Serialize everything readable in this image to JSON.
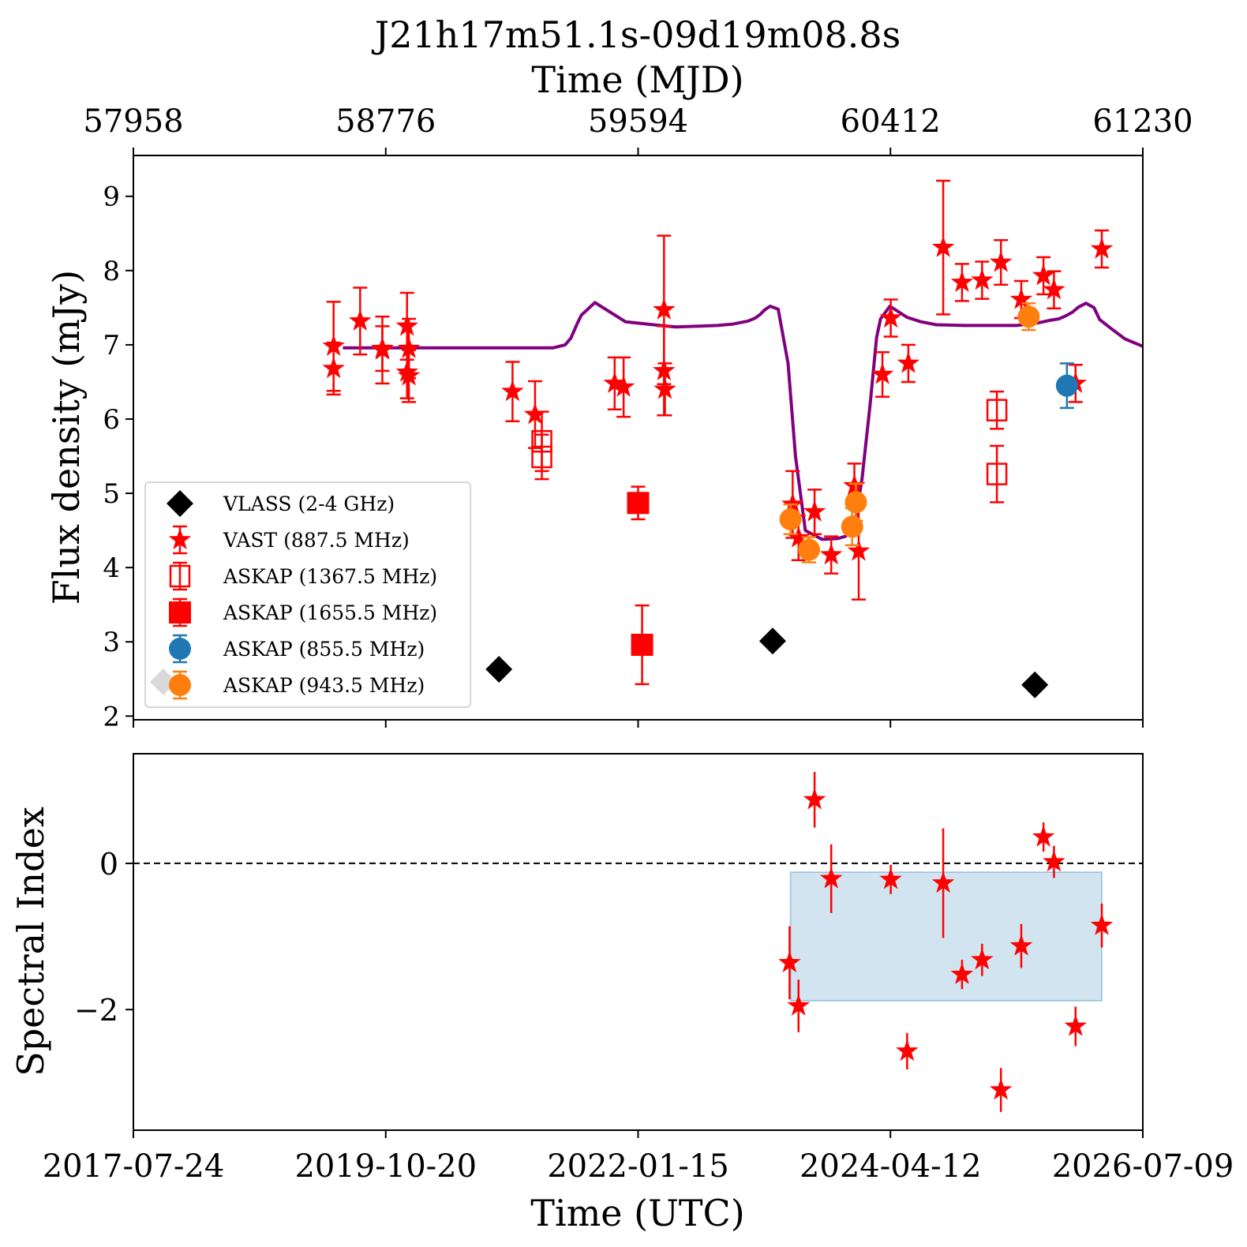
{
  "chart_data": [
    {
      "type": "scatter",
      "panel": "top",
      "title": "J21h17m51.1s-09d19m08.8s",
      "top_xlabel": "Time (MJD)",
      "top_xticks": [
        "57958",
        "58776",
        "59594",
        "60412",
        "61230"
      ],
      "xlim_mjd": [
        57958,
        61230
      ],
      "ylabel": "Flux density (mJy)",
      "ylim": [
        1.95,
        9.55
      ],
      "yticks": [
        "2",
        "3",
        "4",
        "5",
        "6",
        "7",
        "8",
        "9"
      ],
      "legend_position": "lower-left",
      "series": [
        {
          "name": "VLASS (2-4 GHz)",
          "marker": "diamond",
          "color": "#000000",
          "x_mjd": [
            58055,
            59143,
            60030,
            60880
          ],
          "y": [
            2.46,
            2.63,
            3.01,
            2.42
          ],
          "yerr": [
            0.05,
            0.07,
            0.07,
            0.07
          ]
        },
        {
          "name": "VAST (887.5 MHz)",
          "marker": "star",
          "color": "#ff0000",
          "x_mjd": [
            58607,
            58607,
            58693,
            58765,
            58765,
            58845,
            58845,
            58851,
            58851,
            59187,
            59260,
            59518,
            59547,
            59678,
            59678,
            59681,
            60095,
            60114,
            60166,
            60220,
            60295,
            60309,
            60386,
            60413,
            60470,
            60583,
            60644,
            60709,
            60770,
            60836,
            60908,
            60942,
            61012,
            61097
          ],
          "y": [
            6.68,
            6.98,
            7.32,
            6.93,
            6.95,
            7.25,
            6.63,
            6.95,
            6.58,
            6.37,
            6.06,
            6.48,
            6.43,
            7.47,
            6.65,
            6.4,
            4.85,
            4.4,
            4.75,
            4.17,
            5.1,
            4.22,
            6.6,
            7.36,
            6.75,
            8.31,
            7.84,
            7.87,
            8.11,
            7.61,
            7.93,
            7.74,
            6.48,
            8.29
          ],
          "yerr": [
            0.35,
            0.6,
            0.45,
            0.45,
            0.3,
            0.45,
            0.35,
            0.4,
            0.35,
            0.4,
            0.45,
            0.35,
            0.4,
            1.0,
            0.6,
            0.35,
            0.45,
            0.3,
            0.3,
            0.25,
            0.3,
            0.65,
            0.3,
            0.25,
            0.25,
            0.9,
            0.25,
            0.25,
            0.3,
            0.25,
            0.25,
            0.25,
            0.25,
            0.25
          ]
        },
        {
          "name": "ASKAP (1367.5 MHz)",
          "marker": "square-open",
          "color": "#ff0000",
          "x_mjd": [
            59282,
            59282,
            60757,
            60757
          ],
          "y": [
            5.7,
            5.49,
            6.12,
            5.26
          ],
          "yerr": [
            0.4,
            0.3,
            0.25,
            0.38
          ]
        },
        {
          "name": "ASKAP (1655.5 MHz)",
          "marker": "square",
          "color": "#ff0000",
          "x_mjd": [
            59594,
            59607
          ],
          "y": [
            4.87,
            2.96
          ],
          "yerr": [
            0.22,
            0.53
          ]
        },
        {
          "name": "ASKAP (855.5 MHz)",
          "marker": "circle",
          "color": "#1f77b4",
          "x_mjd": [
            60984
          ],
          "y": [
            6.45
          ],
          "yerr": [
            0.3
          ]
        },
        {
          "name": "ASKAP (943.5 MHz)",
          "marker": "circle",
          "color": "#ff7f0e",
          "x_mjd": [
            60088,
            60148,
            60288,
            60300,
            60860
          ],
          "y": [
            4.65,
            4.24,
            4.55,
            4.88,
            7.38
          ],
          "yerr": [
            0.2,
            0.17,
            0.25,
            0.25,
            0.18
          ]
        }
      ],
      "model": {
        "color": "#800080",
        "x_mjd": [
          58637,
          59004,
          59094,
          59188,
          59302,
          59319,
          59358,
          59376,
          59396,
          59410,
          59454,
          59553,
          59666,
          59716,
          59780,
          59850,
          59902,
          59950,
          59974,
          59990,
          60004,
          60022,
          60048,
          60080,
          60104,
          60136,
          60190,
          60240,
          60266,
          60296,
          60320,
          60346,
          60367,
          60380,
          60410,
          60466,
          60511,
          60561,
          60652,
          60758,
          60820,
          60861,
          60896,
          60928,
          60958,
          60980,
          61002,
          61022,
          61046,
          61072,
          61090,
          61130,
          61172,
          61230
        ],
        "y": [
          6.96,
          6.96,
          6.96,
          6.96,
          6.96,
          6.96,
          7.0,
          7.09,
          7.28,
          7.4,
          7.57,
          7.31,
          7.26,
          7.24,
          7.25,
          7.26,
          7.28,
          7.32,
          7.36,
          7.41,
          7.47,
          7.52,
          7.48,
          6.75,
          5.5,
          4.5,
          4.38,
          4.39,
          4.42,
          4.58,
          5.2,
          6.2,
          7.1,
          7.35,
          7.52,
          7.37,
          7.31,
          7.27,
          7.26,
          7.26,
          7.26,
          7.28,
          7.3,
          7.33,
          7.35,
          7.39,
          7.44,
          7.51,
          7.56,
          7.5,
          7.34,
          7.21,
          7.08,
          6.98
        ]
      }
    },
    {
      "type": "scatter",
      "panel": "bottom",
      "xlabel": "Time (UTC)",
      "xticks": [
        "2017-07-24",
        "2019-10-20",
        "2022-01-15",
        "2024-04-12",
        "2026-07-09"
      ],
      "xlim": [
        "2017-07-24",
        "2026-07-09"
      ],
      "ylabel": "Spectral Index",
      "ylim": [
        -3.65,
        1.5
      ],
      "yticks": [
        "−2",
        "0"
      ],
      "reference_line": {
        "y": 0,
        "style": "dashed",
        "color": "#000000"
      },
      "band": {
        "x_mjd": [
          60088,
          61097
        ],
        "y": [
          -1.88,
          -0.12
        ],
        "color": "#1f77b4",
        "alpha": 0.2
      },
      "series": [
        {
          "name": "",
          "marker": "star",
          "color": "#ff0000",
          "x_mjd": [
            60085,
            60114,
            60166,
            60220,
            60413,
            60466,
            60583,
            60644,
            60709,
            60770,
            60836,
            60908,
            60942,
            61012,
            61097
          ],
          "y": [
            -1.36,
            -1.95,
            0.87,
            -0.21,
            -0.22,
            -2.57,
            -0.27,
            -1.52,
            -1.32,
            -3.1,
            -1.13,
            0.36,
            0.02,
            -2.23,
            -0.85
          ],
          "yerr": [
            0.5,
            0.36,
            0.38,
            0.47,
            0.2,
            0.25,
            0.75,
            0.2,
            0.22,
            0.3,
            0.3,
            0.2,
            0.22,
            0.27,
            0.3
          ]
        }
      ]
    }
  ]
}
